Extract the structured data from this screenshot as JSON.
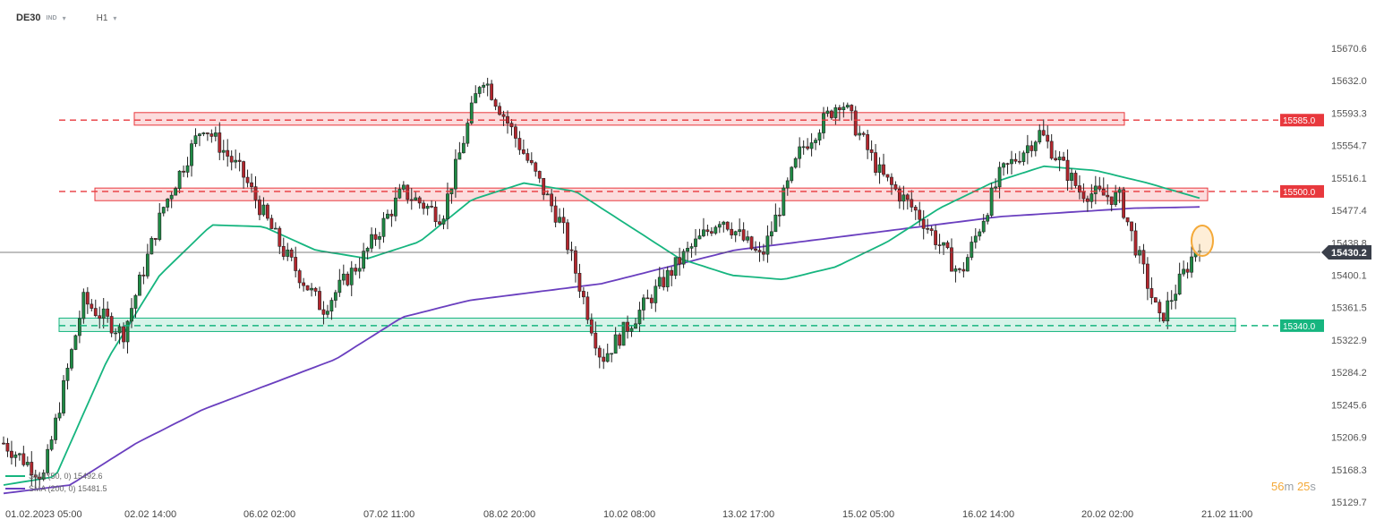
{
  "header": {
    "symbol": "DE30",
    "instrument_type": "IND",
    "timeframe": "H1"
  },
  "timer": {
    "minutes": "56",
    "minutes_unit": "m",
    "seconds": "25",
    "seconds_unit": "s"
  },
  "legend": [
    {
      "label": "SMA (50, 0) 15492.6",
      "color": "#16b57f"
    },
    {
      "label": "SMA (200, 0) 15481.5",
      "color": "#6a3fbf"
    }
  ],
  "chart_data": {
    "type": "candlestick",
    "ylim": [
      15129.7,
      15690
    ],
    "y_ticks": [
      "15670.6",
      "15632.0",
      "15593.3",
      "15554.7",
      "15516.1",
      "15477.4",
      "15438.8",
      "15400.1",
      "15361.5",
      "15322.9",
      "15284.2",
      "15245.6",
      "15206.9",
      "15168.3",
      "15129.7"
    ],
    "x_labels": [
      "01.02.2023 05:00",
      "02.02 14:00",
      "06.02 02:00",
      "07.02 11:00",
      "08.02 20:00",
      "10.02 08:00",
      "13.02 17:00",
      "15.02 05:00",
      "16.02 14:00",
      "20.02 02:00",
      "21.02 11:00"
    ],
    "current_price": "15430.2",
    "levels": [
      {
        "label": "15585.0",
        "value": 15585.0,
        "color": "#e8383d",
        "zone": [
          15579,
          15594
        ]
      },
      {
        "label": "15500.0",
        "value": 15500.0,
        "color": "#e8383d",
        "zone": [
          15489,
          15504
        ]
      },
      {
        "label": "15340.0",
        "value": 15340.0,
        "color": "#16b57f",
        "zone": [
          15333,
          15349
        ]
      }
    ],
    "key_closes": [
      15200,
      15160,
      15370,
      15330,
      15480,
      15580,
      15520,
      15430,
      15360,
      15420,
      15500,
      15470,
      15640,
      15550,
      15460,
      15300,
      15360,
      15420,
      15470,
      15420,
      15550,
      15610,
      15520,
      15470,
      15400,
      15520,
      15570,
      15500,
      15492,
      15345,
      15440
    ],
    "sma50_anchors": [
      15150,
      15160,
      15300,
      15400,
      15460,
      15458,
      15430,
      15420,
      15440,
      15490,
      15510,
      15500,
      15460,
      15420,
      15400,
      15395,
      15410,
      15440,
      15480,
      15510,
      15530,
      15525,
      15510,
      15492
    ],
    "sma200_anchors": [
      15140,
      15150,
      15200,
      15240,
      15270,
      15300,
      15350,
      15370,
      15380,
      15390,
      15410,
      15430,
      15440,
      15450,
      15460,
      15470,
      15475,
      15480,
      15481.5
    ],
    "grid": false
  }
}
